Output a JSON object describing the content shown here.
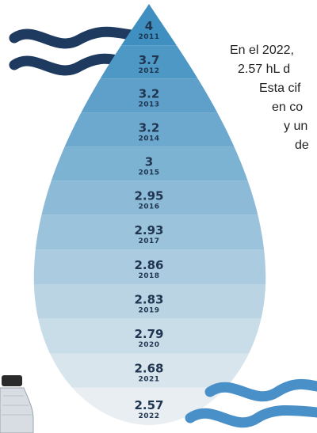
{
  "items": [
    {
      "value": 4,
      "year": 2011
    },
    {
      "value": 3.7,
      "year": 2012
    },
    {
      "value": 3.2,
      "year": 2013
    },
    {
      "value": 3.2,
      "year": 2014
    },
    {
      "value": 3,
      "year": 2015
    },
    {
      "value": 2.95,
      "year": 2016
    },
    {
      "value": 2.93,
      "year": 2017
    },
    {
      "value": 2.86,
      "year": 2018
    },
    {
      "value": 2.83,
      "year": 2019
    },
    {
      "value": 2.79,
      "year": 2020
    },
    {
      "value": 2.68,
      "year": 2021
    },
    {
      "value": 2.57,
      "year": 2022
    }
  ],
  "text_lines": [
    "En el 2022,",
    "2.57 hL d",
    "Esta cif",
    "en co",
    "y un",
    "de"
  ]
}
